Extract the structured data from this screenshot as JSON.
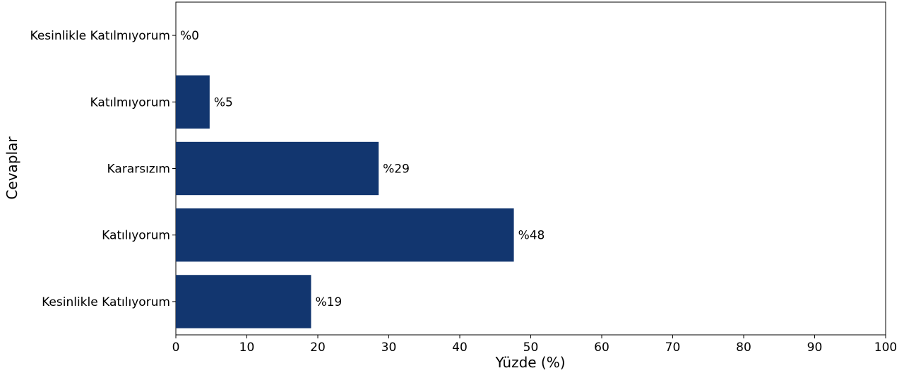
{
  "chart_data": {
    "type": "bar",
    "orientation": "horizontal",
    "categories": [
      "Kesinlikle Katılmıyorum",
      "Katılmıyorum",
      "Kararsızım",
      "Katılıyorum",
      "Kesinlikle Katılıyorum"
    ],
    "values": [
      0,
      4.76,
      28.57,
      47.62,
      19.05
    ],
    "data_labels": [
      "%0",
      "%5",
      "%29",
      "%48",
      "%19"
    ],
    "title": "",
    "xlabel": "Yüzde (%)",
    "ylabel": "Cevaplar",
    "xlim": [
      0,
      100
    ],
    "xticks": [
      0,
      10,
      20,
      30,
      40,
      50,
      60,
      70,
      80,
      90,
      100
    ],
    "grid": false,
    "legend": "none",
    "bar_color": "#12366f"
  }
}
